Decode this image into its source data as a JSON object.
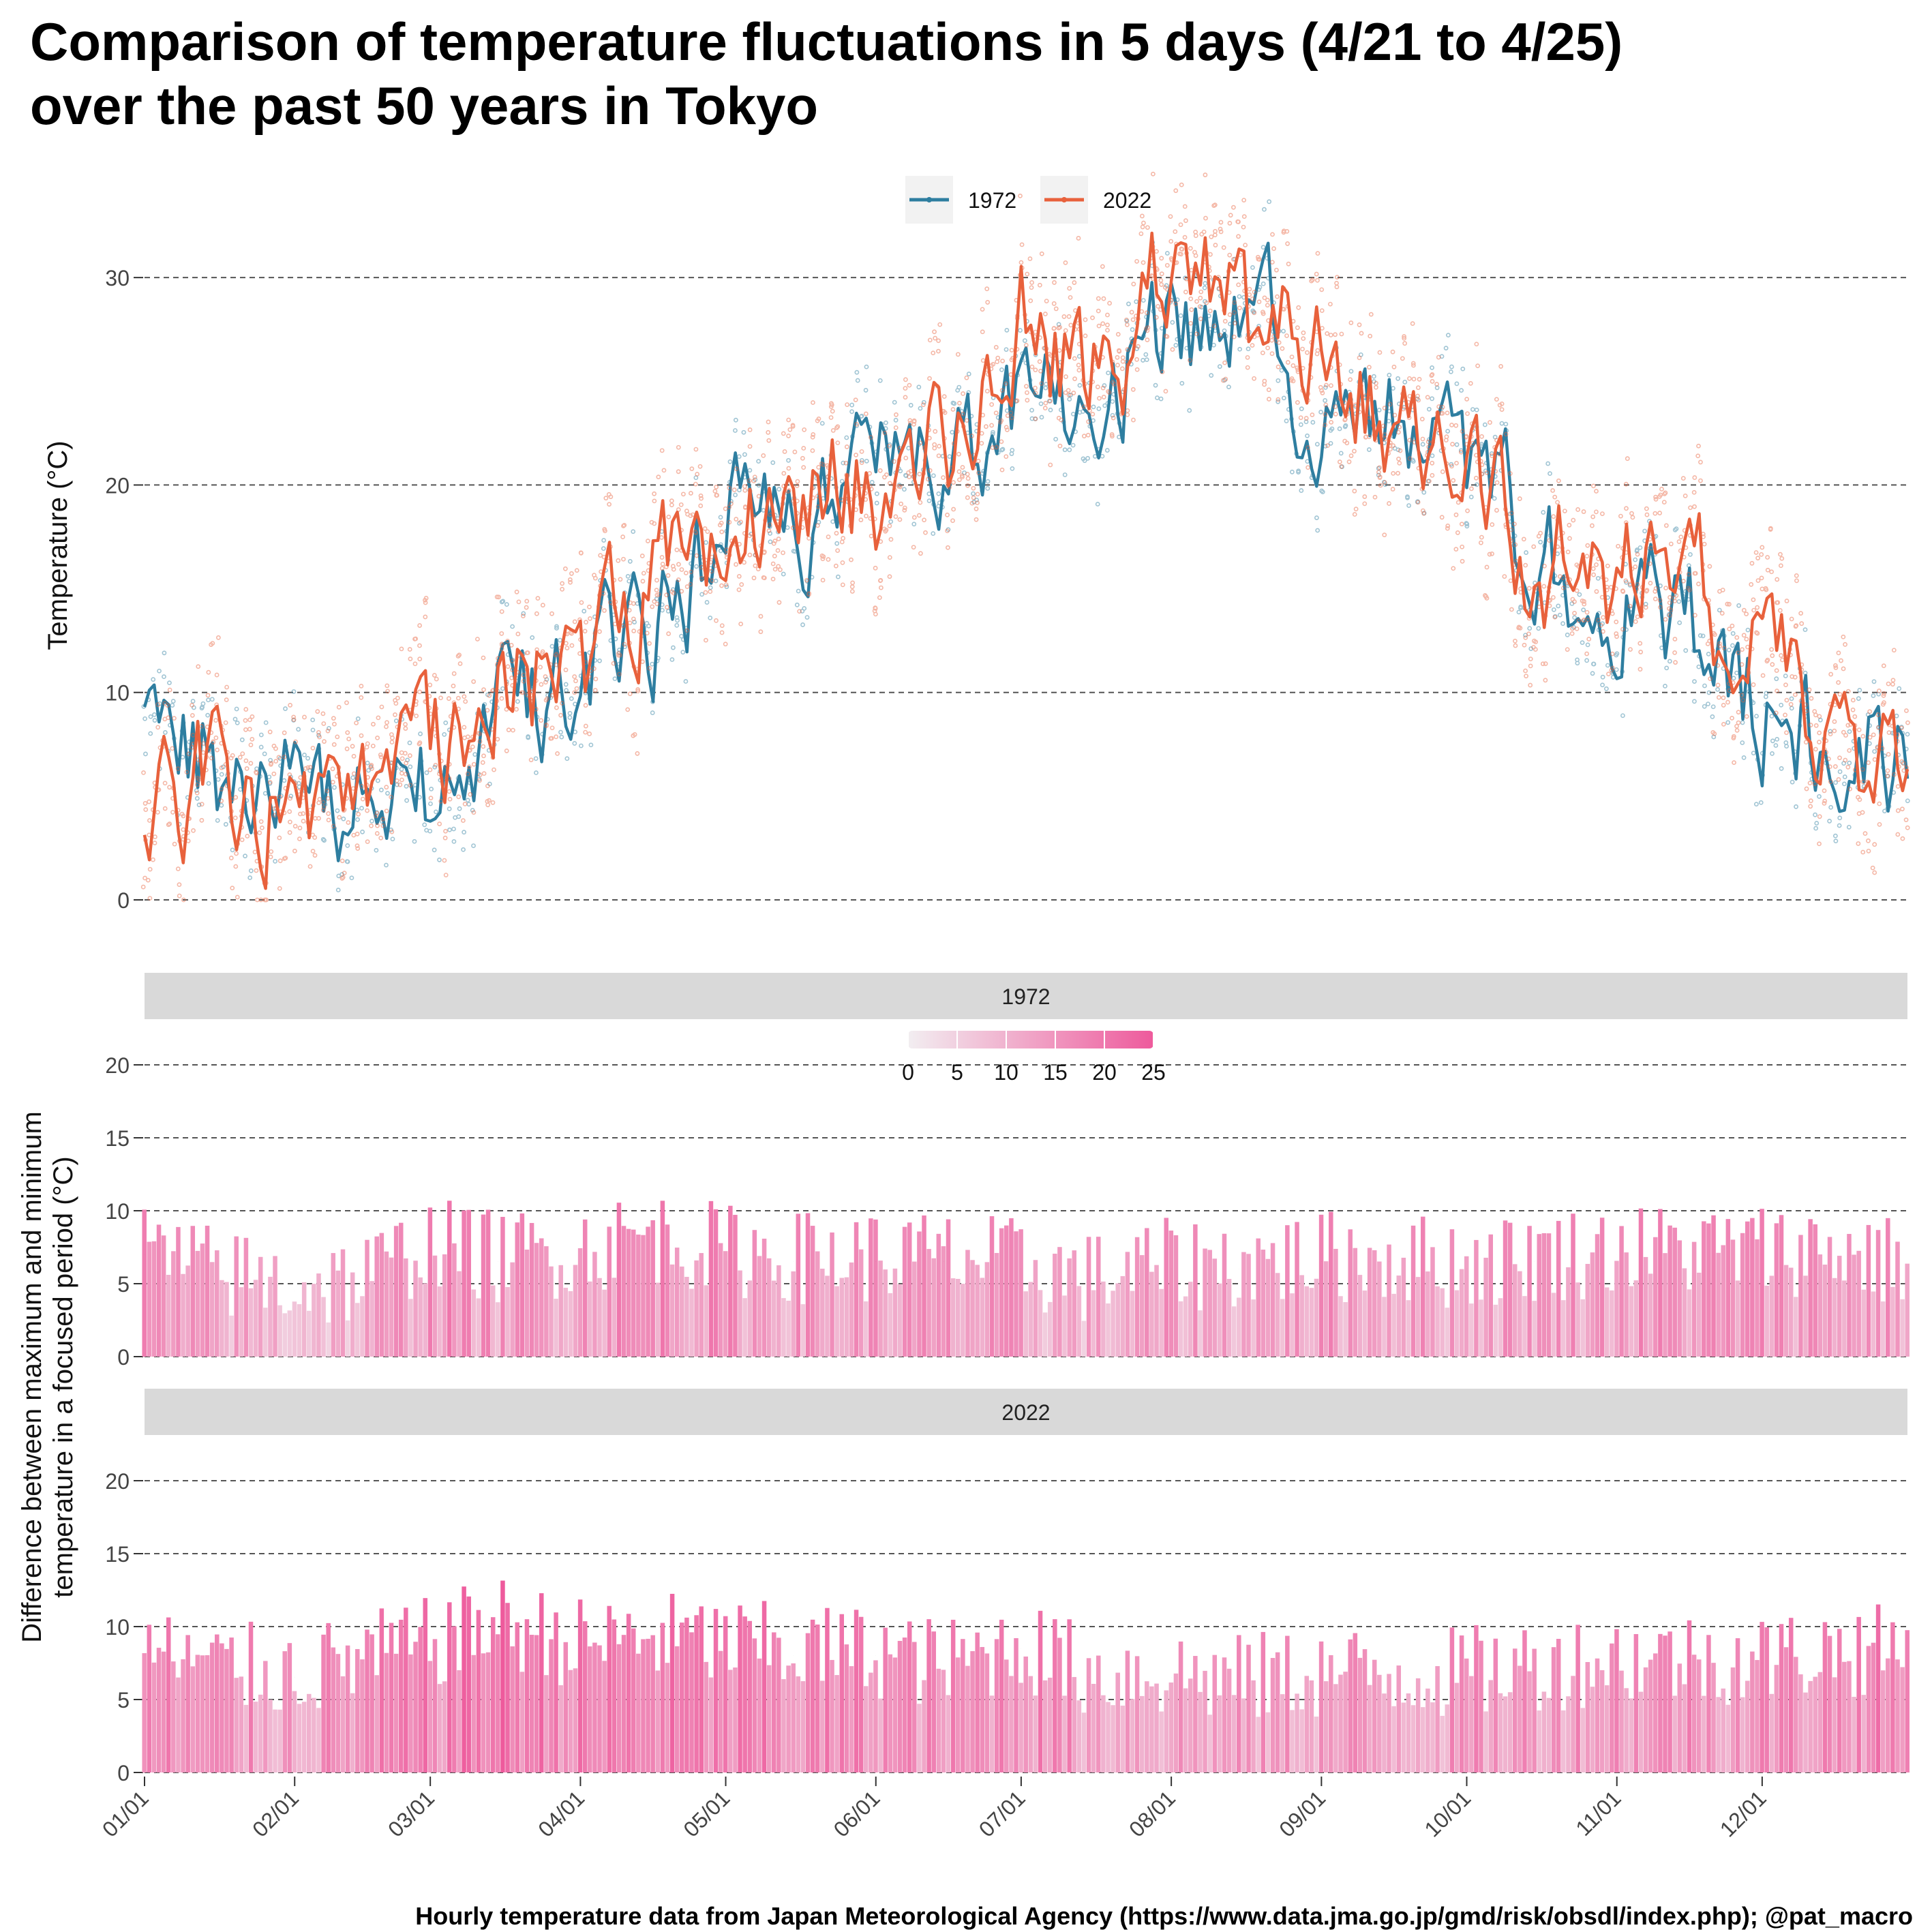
{
  "title_line1": "Comparison of temperature fluctuations in 5 days (4/21 to 4/25)",
  "title_line2": "over the past 50 years in Tokyo",
  "caption": "Hourly temperature data from Japan Meteorological Agency (https://www.data.jma.go.jp/gmd/risk/obsdl/index.php); @pat_macro",
  "colors": {
    "s1972": "#2E7EA0",
    "s2022": "#E8613C",
    "grid": "#555555",
    "strip": "#D9D9D9",
    "bar_low": "#F2EEF1",
    "bar_high": "#EE5A9C"
  },
  "chart_data": [
    {
      "type": "line",
      "panel": "top",
      "ylabel": "Temperature (°C)",
      "xlabel": "",
      "ylim": [
        0,
        35
      ],
      "yticks": [
        0,
        10,
        20,
        30
      ],
      "grid": "horizontal dashed",
      "legend": {
        "placement": "top-center",
        "entries": [
          "1972",
          "2022"
        ]
      },
      "xticks": [
        "01/01",
        "02/01",
        "03/01",
        "04/01",
        "05/01",
        "06/01",
        "07/01",
        "08/01",
        "09/01",
        "10/01",
        "11/01",
        "12/01"
      ],
      "x": [
        "01/01",
        "01/15",
        "02/01",
        "02/15",
        "03/01",
        "03/15",
        "04/01",
        "04/15",
        "05/01",
        "05/15",
        "06/01",
        "06/15",
        "07/01",
        "07/15",
        "08/01",
        "08/15",
        "09/01",
        "09/15",
        "10/01",
        "10/15",
        "11/01",
        "11/15",
        "12/01",
        "12/15",
        "12/31"
      ],
      "series": [
        {
          "name": "1972",
          "values": [
            8.0,
            6.5,
            4.5,
            5.5,
            5.5,
            8.0,
            11.0,
            12.0,
            18.5,
            18.0,
            21.0,
            22.0,
            23.0,
            25.0,
            27.5,
            27.5,
            25.0,
            24.0,
            21.0,
            17.0,
            15.0,
            13.0,
            9.5,
            7.0,
            8.0
          ]
        },
        {
          "name": "2022",
          "values": [
            4.5,
            6.0,
            5.0,
            4.0,
            6.5,
            11.0,
            10.0,
            16.0,
            16.5,
            19.5,
            20.0,
            22.0,
            28.5,
            25.0,
            30.5,
            27.5,
            26.0,
            24.0,
            22.0,
            17.0,
            15.5,
            15.0,
            12.0,
            7.0,
            6.0
          ]
        }
      ]
    },
    {
      "type": "bar",
      "panel": "1972",
      "strip_label": "1972",
      "ylabel": "Difference between maximum and minimum temperature in a focused period (°C)",
      "ylim": [
        0,
        20
      ],
      "yticks": [
        0,
        5,
        10,
        15,
        20
      ],
      "colorbar": {
        "min": 0,
        "max": 25,
        "ticks": [
          0,
          5,
          10,
          15,
          20,
          25
        ]
      },
      "x": [
        "01/01",
        "01/15",
        "02/01",
        "02/15",
        "03/01",
        "03/15",
        "04/01",
        "04/15",
        "05/01",
        "05/15",
        "06/01",
        "06/15",
        "07/01",
        "07/15",
        "08/01",
        "08/15",
        "09/01",
        "09/15",
        "10/01",
        "10/15",
        "11/01",
        "11/15",
        "12/01",
        "12/15",
        "12/31"
      ],
      "values": [
        7.0,
        5.5,
        4.5,
        5.0,
        7.5,
        6.5,
        7.0,
        8.0,
        7.0,
        6.5,
        6.5,
        6.5,
        6.0,
        5.0,
        6.0,
        6.0,
        6.5,
        6.5,
        6.0,
        6.5,
        7.0,
        7.0,
        7.0,
        7.0,
        6.0
      ]
    },
    {
      "type": "bar",
      "panel": "2022",
      "strip_label": "2022",
      "ylim": [
        0,
        20
      ],
      "yticks": [
        0,
        5,
        10,
        15,
        20
      ],
      "x": [
        "01/01",
        "01/15",
        "02/01",
        "02/15",
        "03/01",
        "03/15",
        "04/01",
        "04/15",
        "05/01",
        "05/15",
        "06/01",
        "06/15",
        "07/01",
        "07/15",
        "08/01",
        "08/15",
        "09/01",
        "09/15",
        "10/01",
        "10/15",
        "11/01",
        "11/15",
        "12/01",
        "12/15",
        "12/31"
      ],
      "values": [
        8.0,
        7.0,
        6.5,
        7.5,
        8.5,
        10.0,
        8.5,
        9.0,
        8.5,
        8.0,
        8.0,
        7.0,
        8.5,
        6.5,
        6.5,
        6.0,
        6.5,
        6.5,
        6.5,
        7.0,
        7.5,
        7.5,
        7.5,
        8.0,
        8.0
      ]
    }
  ]
}
